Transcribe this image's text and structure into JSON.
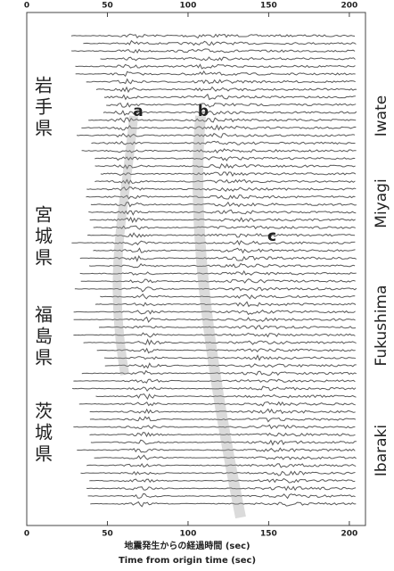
{
  "chart_data": {
    "type": "seismogram",
    "xlabel_ja": "地震発生からの経過時間 (sec)",
    "xlabel_en": "Time from origin time (sec)",
    "xlim": [
      0,
      210
    ],
    "xticks": [
      0,
      50,
      100,
      150,
      200
    ],
    "prefectures_ja": [
      "岩手県",
      "宮城県",
      "福島県",
      "茨城県"
    ],
    "prefectures_en": [
      "Iwate",
      "Miyagi",
      "Fukushima",
      "Ibaraki"
    ],
    "phases": [
      "a",
      "b",
      "c"
    ]
  }
}
